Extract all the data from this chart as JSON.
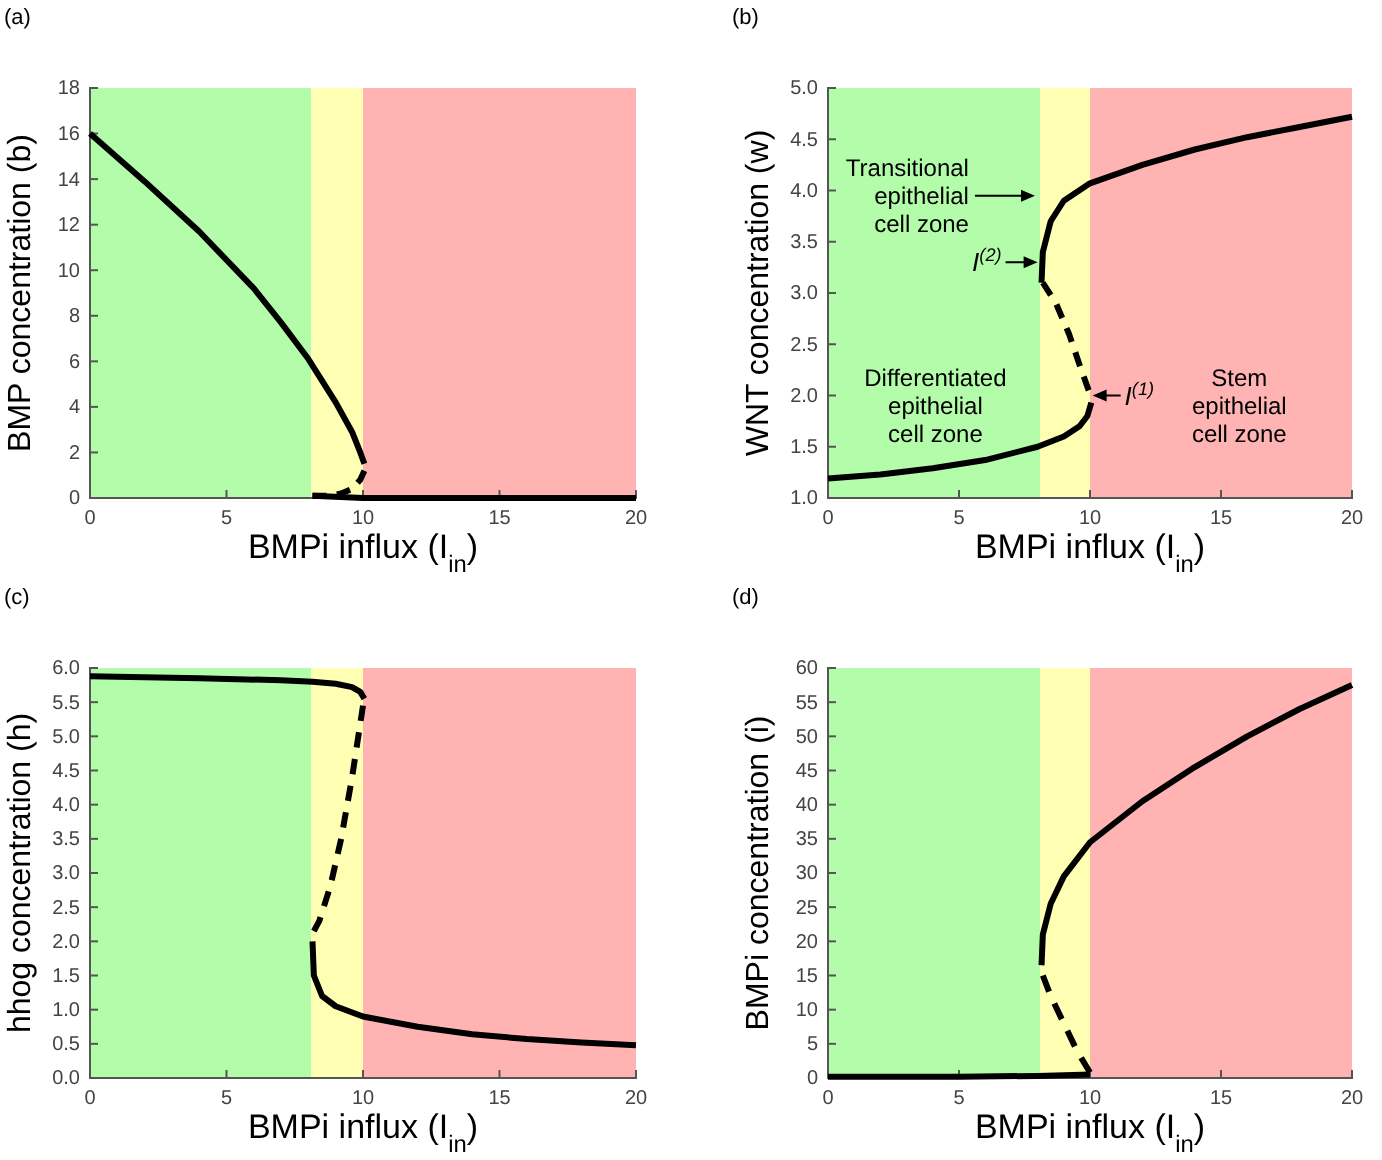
{
  "chart_data": [
    {
      "type": "line",
      "title": "(a)",
      "xlabel": "BMPi influx (I$_{in}$)",
      "ylabel": "BMP concentration (b)",
      "xlim": [
        0,
        20
      ],
      "xticks": [
        0,
        5,
        10,
        15,
        20
      ],
      "ylim": [
        0,
        18
      ],
      "yticks": [
        0,
        2,
        4,
        6,
        8,
        10,
        12,
        14,
        16,
        18
      ],
      "bands": [
        {
          "axis": "x",
          "from": 0,
          "to": 8.1,
          "color": "#b3fdaa"
        },
        {
          "axis": "x",
          "from": 8.1,
          "to": 10,
          "color": "#ffffb3"
        },
        {
          "axis": "x",
          "from": 10,
          "to": 20,
          "color": "#ffb3b3"
        }
      ],
      "series": [
        {
          "color": "#000000",
          "line_style": "solid",
          "x": [
            0,
            2,
            4,
            6,
            7,
            8,
            9,
            9.6,
            9.9,
            10.05
          ],
          "values": [
            16,
            13.9,
            11.7,
            9.2,
            7.7,
            6.1,
            4.2,
            2.9,
            2.0,
            1.5
          ]
        },
        {
          "color": "#000000",
          "line_style": "dashed",
          "x": [
            10.05,
            9.9,
            9.6,
            9.2,
            8.8,
            8.15
          ],
          "values": [
            1.2,
            0.8,
            0.4,
            0.2,
            0.1,
            0.1
          ]
        },
        {
          "color": "#000000",
          "line_style": "solid",
          "x": [
            8.15,
            10,
            15,
            20
          ],
          "values": [
            0.1,
            0,
            0,
            0
          ]
        }
      ]
    },
    {
      "type": "line",
      "title": "(b)",
      "xlabel": "BMPi influx (I$_{in}$)",
      "ylabel": "WNT concentration (w)",
      "xlim": [
        0,
        20
      ],
      "xticks": [
        0,
        5,
        10,
        15,
        20
      ],
      "ylim": [
        1,
        5
      ],
      "yticks": [
        {
          "value": 1,
          "label": "1.0"
        },
        1.5,
        {
          "value": 2,
          "label": "2.0"
        },
        2.5,
        {
          "value": 3,
          "label": "3.0"
        },
        3.5,
        {
          "value": 4,
          "label": "4.0"
        },
        4.5,
        {
          "value": 5,
          "label": "5.0"
        }
      ],
      "bands": [
        {
          "axis": "x",
          "from": 0,
          "to": 8.1,
          "color": "#b3fdaa"
        },
        {
          "axis": "x",
          "from": 8.1,
          "to": 10,
          "color": "#ffffb3"
        },
        {
          "axis": "x",
          "from": 10,
          "to": 20,
          "color": "#ffb3b3"
        }
      ],
      "annotations": [
        {
          "text": "Transitional epithelial cell zone",
          "x": 7.9,
          "y": 3.95
        },
        {
          "text": "I$^{(2)}$",
          "x": 8.0,
          "y": 3.3
        },
        {
          "text": "I$^{(1)}$",
          "x": 10.1,
          "y": 2.0
        },
        "Differentiated epithelial cell zone",
        "Stem epithelial cell zone"
      ],
      "series": [
        {
          "color": "#000000",
          "line_style": "solid",
          "x": [
            0,
            2,
            4,
            6,
            8,
            9,
            9.6,
            9.9,
            10.05
          ],
          "values": [
            1.19,
            1.23,
            1.29,
            1.37,
            1.5,
            1.6,
            1.7,
            1.8,
            1.93
          ]
        },
        {
          "color": "#000000",
          "line_style": "dashed",
          "x": [
            9.95,
            9.6,
            9.2,
            8.7,
            8.2
          ],
          "values": [
            2.05,
            2.3,
            2.6,
            2.9,
            3.1
          ]
        },
        {
          "color": "#000000",
          "line_style": "solid",
          "x": [
            8.15,
            8.2,
            8.5,
            9,
            10,
            12,
            14,
            16,
            18,
            20
          ],
          "values": [
            3.1,
            3.4,
            3.7,
            3.9,
            4.07,
            4.25,
            4.4,
            4.52,
            4.62,
            4.72
          ]
        }
      ]
    },
    {
      "type": "line",
      "title": "(c)",
      "xlabel": "BMPi influx (I$_{in}$)",
      "ylabel": "hhog concentration (h)",
      "xlim": [
        0,
        20
      ],
      "xticks": [
        0,
        5,
        10,
        15,
        20
      ],
      "ylim": [
        0,
        6
      ],
      "yticks": [
        {
          "value": 0,
          "label": "0.0"
        },
        0.5,
        {
          "value": 1,
          "label": "1.0"
        },
        1.5,
        {
          "value": 2,
          "label": "2.0"
        },
        2.5,
        {
          "value": 3,
          "label": "3.0"
        },
        3.5,
        {
          "value": 4,
          "label": "4.0"
        },
        4.5,
        {
          "value": 5,
          "label": "5.0"
        },
        5.5,
        {
          "value": 6,
          "label": "6.0"
        }
      ],
      "bands": [
        {
          "axis": "x",
          "from": 0,
          "to": 8.1,
          "color": "#b3fdaa"
        },
        {
          "axis": "x",
          "from": 8.1,
          "to": 10,
          "color": "#ffffb3"
        },
        {
          "axis": "x",
          "from": 10,
          "to": 20,
          "color": "#ffb3b3"
        }
      ],
      "series": [
        {
          "color": "#000000",
          "line_style": "solid",
          "x": [
            0,
            4,
            7,
            8.15,
            9,
            9.6,
            9.9,
            10.05
          ],
          "values": [
            5.88,
            5.85,
            5.82,
            5.8,
            5.77,
            5.72,
            5.65,
            5.55
          ]
        },
        {
          "color": "#000000",
          "line_style": "dashed",
          "x": [
            10,
            9.6,
            9.2,
            8.8,
            8.4,
            8.2
          ],
          "values": [
            5.45,
            4.4,
            3.5,
            2.8,
            2.3,
            2.15
          ]
        },
        {
          "color": "#000000",
          "line_style": "solid",
          "x": [
            8.15,
            8.2,
            8.5,
            9,
            10,
            12,
            14,
            16,
            18,
            20
          ],
          "values": [
            2.0,
            1.5,
            1.2,
            1.05,
            0.9,
            0.75,
            0.64,
            0.57,
            0.52,
            0.48
          ]
        }
      ]
    },
    {
      "type": "line",
      "title": "(d)",
      "xlabel": "BMPi influx (I$_{in}$)",
      "ylabel": "BMPi concentration (i)",
      "xlim": [
        0,
        20
      ],
      "xticks": [
        0,
        5,
        10,
        15,
        20
      ],
      "ylim": [
        0,
        60
      ],
      "yticks": [
        0,
        5,
        10,
        15,
        20,
        25,
        30,
        35,
        40,
        45,
        50,
        55,
        60
      ],
      "bands": [
        {
          "axis": "x",
          "from": 0,
          "to": 8.1,
          "color": "#b3fdaa"
        },
        {
          "axis": "x",
          "from": 8.1,
          "to": 10,
          "color": "#ffffb3"
        },
        {
          "axis": "x",
          "from": 10,
          "to": 20,
          "color": "#ffb3b3"
        }
      ],
      "series": [
        {
          "color": "#000000",
          "line_style": "solid",
          "x": [
            0,
            5,
            8,
            10
          ],
          "values": [
            0.2,
            0.2,
            0.3,
            0.5
          ]
        },
        {
          "color": "#000000",
          "line_style": "dashed",
          "x": [
            10,
            9.5,
            9,
            8.5,
            8.2
          ],
          "values": [
            0.8,
            4,
            8,
            12,
            15
          ]
        },
        {
          "color": "#000000",
          "line_style": "solid",
          "x": [
            8.15,
            8.2,
            8.5,
            9,
            10,
            12,
            14,
            16,
            18,
            20
          ],
          "values": [
            16.5,
            21,
            25.5,
            29.5,
            34.5,
            40.5,
            45.5,
            50,
            54,
            57.5
          ]
        }
      ]
    }
  ]
}
